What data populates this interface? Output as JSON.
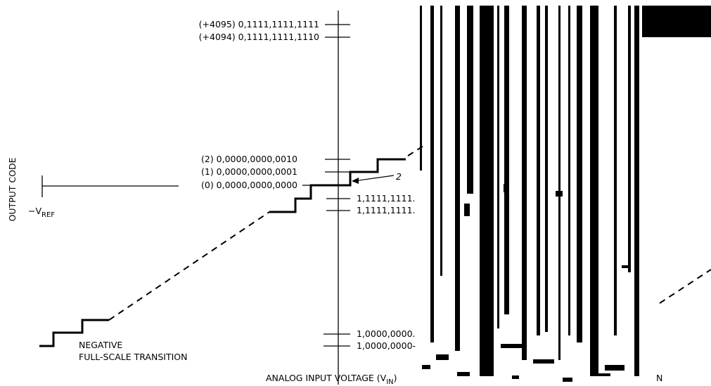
{
  "diagram": {
    "y_axis_label": "OUTPUT CODE",
    "x_axis_label": "ANALOG INPUT VOLTAGE (V",
    "x_axis_label_sub": "IN",
    "x_axis_label_close": ")",
    "neg_ref_label": "−V",
    "neg_ref_sub": "REF",
    "neg_transition_line1": "NEGATIVE",
    "neg_transition_line2": "FULL-SCALE TRANSITION",
    "right_edge_label": "N",
    "small_mark": "2",
    "codes_top": [
      "(+4095) 0,1111,1111,1111",
      "(+4094) 0,1111,1111,1110"
    ],
    "codes_mid": [
      "(2) 0,0000,0000,0010",
      "(1) 0,0000,0000,0001",
      "(0) 0,0000,0000,0000"
    ],
    "codes_neg_right": [
      "1,1111,1111.",
      "1,1111,1111."
    ],
    "codes_bottom_right": [
      "1,0000,0000.",
      "1,0000,0000-"
    ]
  }
}
